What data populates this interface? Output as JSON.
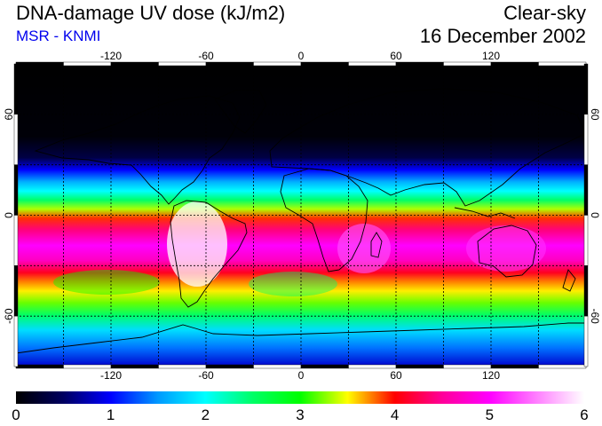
{
  "header": {
    "title": "DNA-damage UV dose (kJ/m2)",
    "subtitle": "MSR - KNMI",
    "condition": "Clear-sky",
    "date": "16 December 2002"
  },
  "map": {
    "lon_ticks": [
      "-120",
      "-60",
      "0",
      "60",
      "120"
    ],
    "lat_ticks": [
      "60",
      "0",
      "-60"
    ],
    "lon_values": [
      -120,
      -60,
      0,
      60,
      120
    ],
    "lat_values": [
      60,
      0,
      -60
    ],
    "lon_range": [
      -180,
      180
    ],
    "lat_range": [
      -90,
      90
    ],
    "grid_lon_step": 30,
    "grid_lat_step": 30
  },
  "colorbar": {
    "min": 0,
    "max": 6,
    "labels": [
      "0",
      "1",
      "2",
      "3",
      "4",
      "5",
      "6"
    ],
    "stops": [
      {
        "value": 0.0,
        "color": "#000000"
      },
      {
        "value": 0.5,
        "color": "#000060"
      },
      {
        "value": 1.0,
        "color": "#0000ff"
      },
      {
        "value": 1.5,
        "color": "#0099ff"
      },
      {
        "value": 2.0,
        "color": "#00ffff"
      },
      {
        "value": 2.5,
        "color": "#00ff66"
      },
      {
        "value": 3.0,
        "color": "#00ff00"
      },
      {
        "value": 3.5,
        "color": "#ffff00"
      },
      {
        "value": 4.0,
        "color": "#ff0000"
      },
      {
        "value": 4.5,
        "color": "#ff0099"
      },
      {
        "value": 5.0,
        "color": "#ff00ff"
      },
      {
        "value": 6.0,
        "color": "#ffffff"
      }
    ]
  }
}
